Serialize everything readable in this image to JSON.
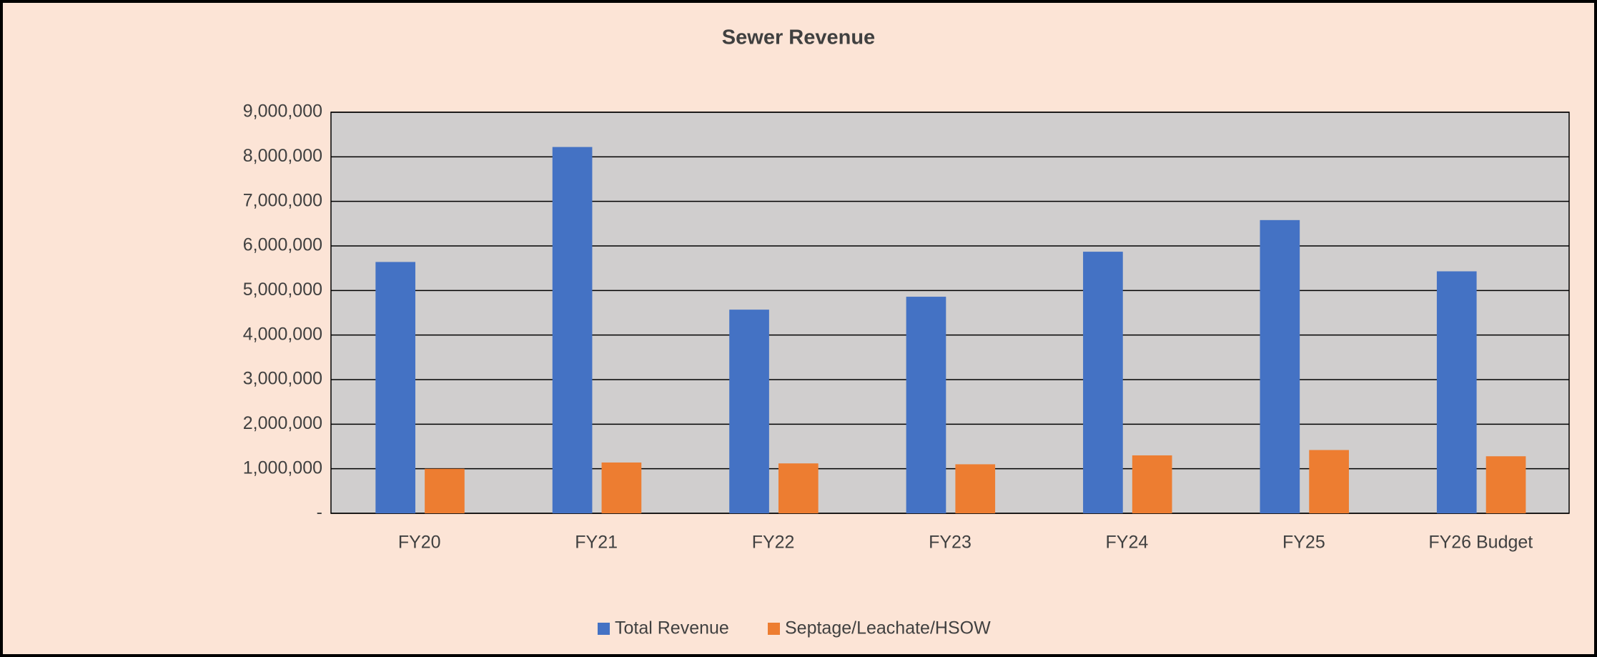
{
  "chart_data": {
    "type": "bar",
    "title": "Sewer Revenue",
    "categories": [
      "FY20",
      "FY21",
      "FY22",
      "FY23",
      "FY24",
      "FY25",
      "FY26 Budget"
    ],
    "series": [
      {
        "name": "Total Revenue",
        "color": "#4472c4",
        "values": [
          5640000,
          8220000,
          4570000,
          4860000,
          5870000,
          6580000,
          5430000
        ]
      },
      {
        "name": "Septage/Leachate/HSOW",
        "color": "#ed7d31",
        "values": [
          1000000,
          1140000,
          1120000,
          1100000,
          1300000,
          1420000,
          1280000
        ]
      }
    ],
    "ylim": [
      0,
      9000000
    ],
    "yticks": [
      {
        "value": 0,
        "label": "-"
      },
      {
        "value": 1000000,
        "label": "1,000,000"
      },
      {
        "value": 2000000,
        "label": "2,000,000"
      },
      {
        "value": 3000000,
        "label": "3,000,000"
      },
      {
        "value": 4000000,
        "label": "4,000,000"
      },
      {
        "value": 5000000,
        "label": "5,000,000"
      },
      {
        "value": 6000000,
        "label": "6,000,000"
      },
      {
        "value": 7000000,
        "label": "7,000,000"
      },
      {
        "value": 8000000,
        "label": "8,000,000"
      },
      {
        "value": 9000000,
        "label": "9,000,000"
      }
    ],
    "grid": true,
    "legend": "bottom"
  }
}
